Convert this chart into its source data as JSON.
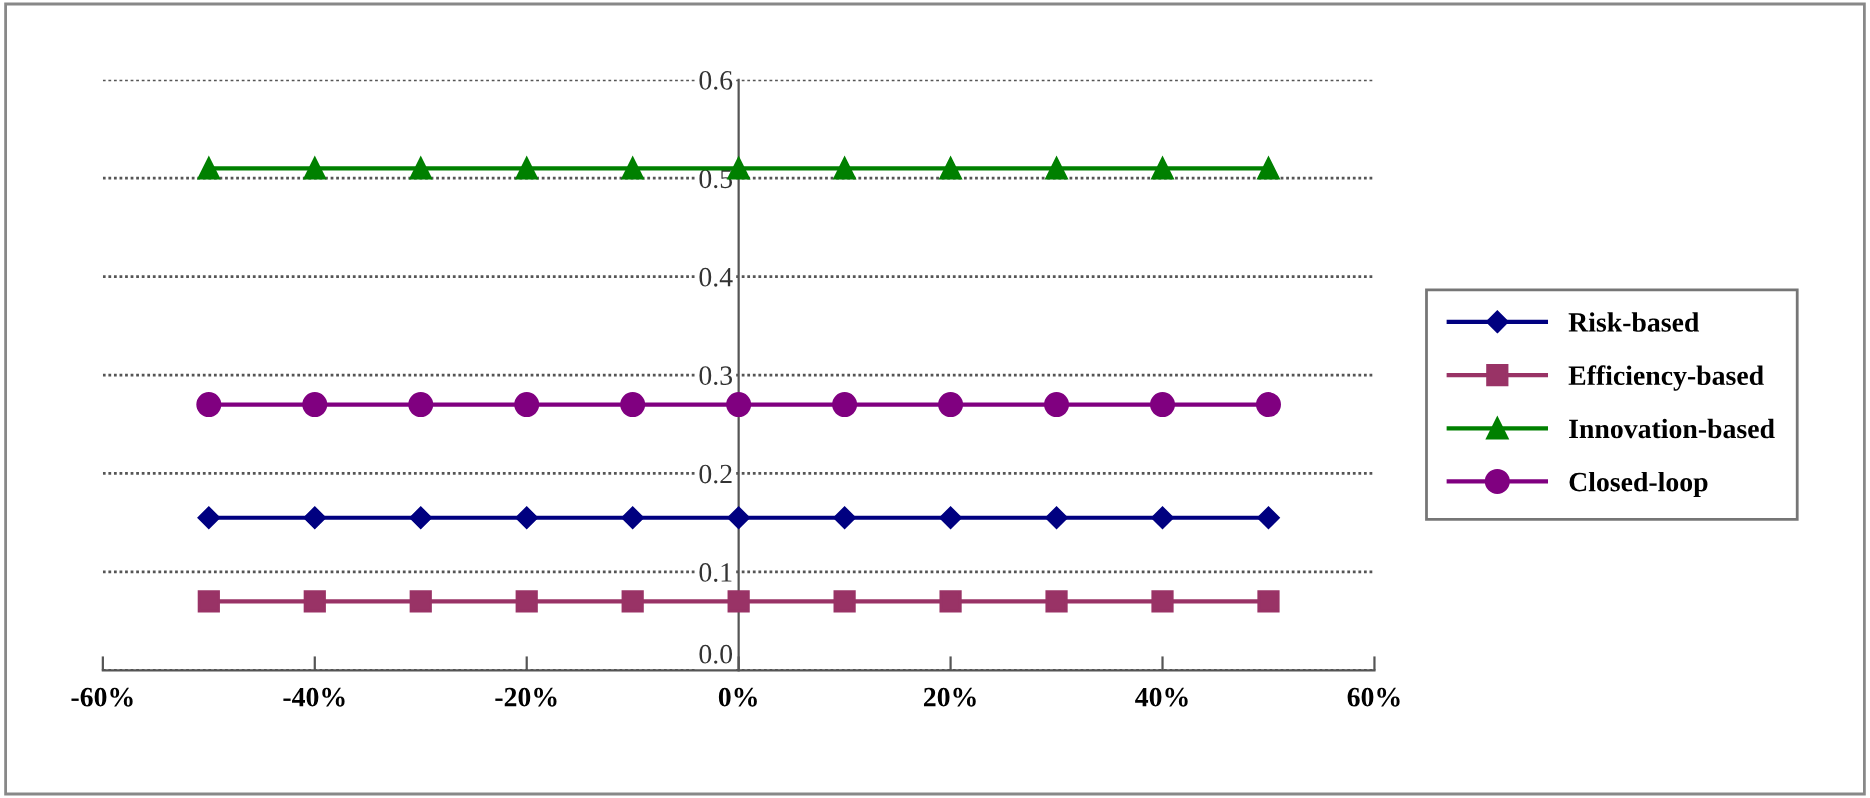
{
  "chart_data": {
    "type": "line",
    "x": [
      -50,
      -40,
      -30,
      -20,
      -10,
      0,
      10,
      20,
      30,
      40,
      50
    ],
    "series": [
      {
        "name": "Risk-based",
        "color": "#000080",
        "marker": "diamond",
        "values": [
          0.155,
          0.155,
          0.155,
          0.155,
          0.155,
          0.155,
          0.155,
          0.155,
          0.155,
          0.155,
          0.155
        ]
      },
      {
        "name": "Efficiency-based",
        "color": "#993366",
        "marker": "square",
        "values": [
          0.07,
          0.07,
          0.07,
          0.07,
          0.07,
          0.07,
          0.07,
          0.07,
          0.07,
          0.07,
          0.07
        ]
      },
      {
        "name": "Innovation-based",
        "color": "#008000",
        "marker": "triangle",
        "values": [
          0.51,
          0.51,
          0.51,
          0.51,
          0.51,
          0.51,
          0.51,
          0.51,
          0.51,
          0.51,
          0.51
        ]
      },
      {
        "name": "Closed-loop",
        "color": "#800080",
        "marker": "circle",
        "values": [
          0.27,
          0.27,
          0.27,
          0.27,
          0.27,
          0.27,
          0.27,
          0.27,
          0.27,
          0.27,
          0.27
        ]
      }
    ],
    "xlim": [
      -60,
      60
    ],
    "xticks": [
      {
        "value": -60,
        "label": "-60%"
      },
      {
        "value": -40,
        "label": "-40%"
      },
      {
        "value": -20,
        "label": "-20%"
      },
      {
        "value": 0,
        "label": "0%"
      },
      {
        "value": 20,
        "label": "20%"
      },
      {
        "value": 40,
        "label": "40%"
      },
      {
        "value": 60,
        "label": "60%"
      }
    ],
    "ylim": [
      0,
      0.6
    ],
    "yticks": [
      {
        "value": 0,
        "label": "0.0"
      },
      0.1,
      0.2,
      0.3,
      0.4,
      0.5,
      0.6
    ],
    "grid": "y",
    "legend": "right",
    "line_style": "solid"
  }
}
